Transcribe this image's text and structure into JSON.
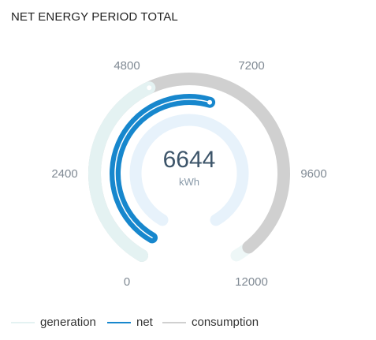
{
  "header": {
    "title": "NET ENERGY PERIOD TOTAL"
  },
  "chart_data": {
    "type": "radial-gauge",
    "title": "NET ENERGY PERIOD TOTAL",
    "unit": "kWh",
    "center_value": "6644",
    "scale": {
      "min": 0,
      "max": 12000
    },
    "tick_labels": [
      "0",
      "2400",
      "4800",
      "7200",
      "9600",
      "12000"
    ],
    "series": [
      {
        "name": "generation",
        "value": 5000,
        "color": "#e4f2f2"
      },
      {
        "name": "net",
        "value": 6644,
        "color": "#1787cd"
      },
      {
        "name": "consumption",
        "value": 11644,
        "color": "#d0d0d0"
      }
    ]
  },
  "legend": [
    {
      "label": "generation",
      "color": "#e4f2f2"
    },
    {
      "label": "net",
      "color": "#1787cd"
    },
    {
      "label": "consumption",
      "color": "#d0d0d0"
    }
  ]
}
